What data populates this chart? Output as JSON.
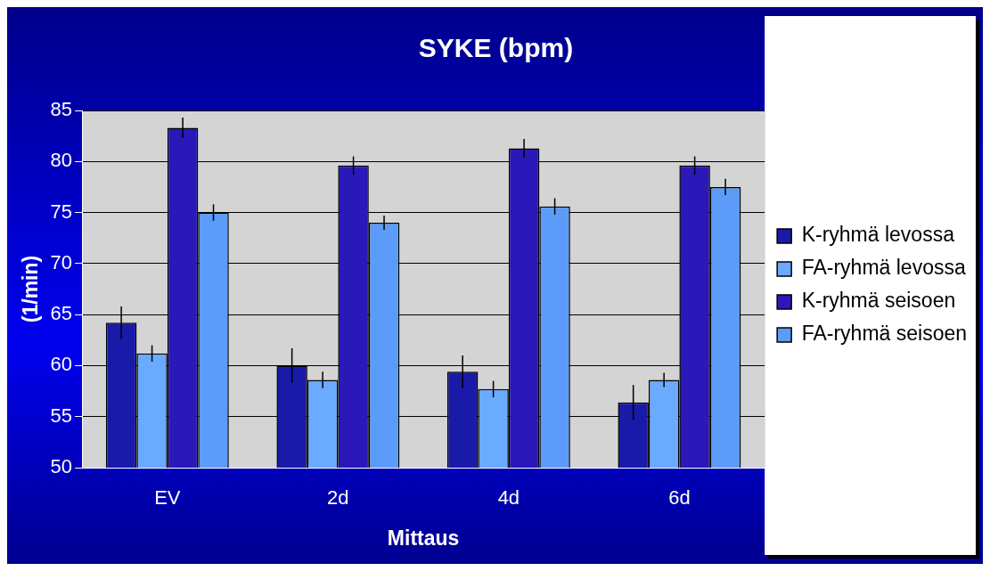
{
  "chart_data": {
    "type": "bar",
    "title": "SYKE (bpm)",
    "xlabel": "Mittaus",
    "ylabel": "(1/min)",
    "categories": [
      "EV",
      "2d",
      "4d",
      "6d"
    ],
    "series": [
      {
        "name": "K-ryhmä levossa",
        "color": "#1a1aa8",
        "values": [
          64.2,
          60.0,
          59.4,
          56.4
        ],
        "errors": [
          1.6,
          1.7,
          1.6,
          1.7
        ]
      },
      {
        "name": "FA-ryhmä levossa",
        "color": "#6aaaff",
        "values": [
          61.2,
          58.6,
          57.7,
          58.6
        ],
        "errors": [
          0.8,
          0.8,
          0.8,
          0.7
        ]
      },
      {
        "name": "K-ryhmä seisoen",
        "color": "#2a18b8",
        "values": [
          83.3,
          79.6,
          81.3,
          79.6
        ],
        "errors": [
          1.0,
          0.9,
          0.9,
          0.9
        ]
      },
      {
        "name": "FA-ryhmä seisoen",
        "color": "#5c9cf8",
        "values": [
          75.0,
          74.0,
          75.6,
          77.5
        ],
        "errors": [
          0.8,
          0.7,
          0.8,
          0.8
        ]
      }
    ],
    "ylim": [
      50,
      85
    ],
    "yticks": [
      50,
      55,
      60,
      65,
      70,
      75,
      80,
      85
    ],
    "grid": "y",
    "legend": "right"
  }
}
